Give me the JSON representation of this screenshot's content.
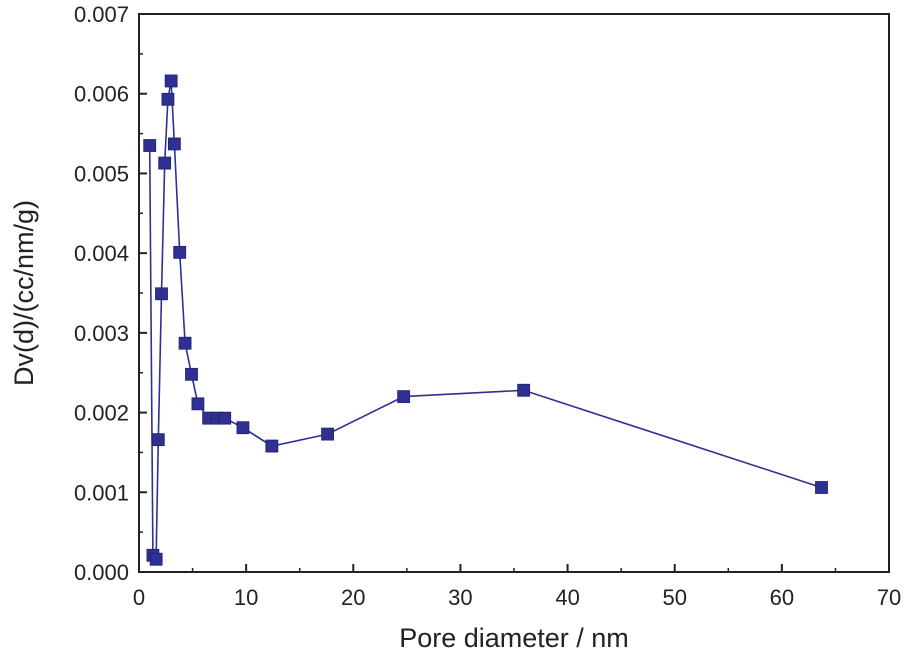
{
  "chart_data": {
    "type": "line",
    "xlabel": "Pore diameter / nm",
    "ylabel": "Dv(d)/(cc/nm/g)",
    "xlim": [
      0,
      70
    ],
    "ylim": [
      0,
      0.007
    ],
    "x_ticks": [
      0,
      10,
      20,
      30,
      40,
      50,
      60,
      70
    ],
    "x_tick_labels": [
      "0",
      "10",
      "20",
      "30",
      "40",
      "50",
      "60",
      "70"
    ],
    "y_ticks": [
      0,
      0.001,
      0.002,
      0.003,
      0.004,
      0.005,
      0.006,
      0.007
    ],
    "y_tick_labels": [
      "0.000",
      "0.001",
      "0.002",
      "0.003",
      "0.004",
      "0.005",
      "0.006",
      "0.007"
    ],
    "grid": false,
    "legend": "none",
    "marker": "square",
    "color": "#2e3192",
    "series": [
      {
        "x": [
          1.0,
          1.3,
          1.6,
          1.8,
          2.1,
          2.4,
          2.7,
          3.0,
          3.3,
          3.8,
          4.3,
          4.9,
          5.5,
          6.5,
          7.3,
          8.0,
          9.7,
          12.4,
          17.6,
          24.7,
          35.9,
          63.7
        ],
        "y": [
          0.00535,
          0.00021,
          0.00016,
          0.00166,
          0.00349,
          0.00513,
          0.00593,
          0.00616,
          0.00537,
          0.00401,
          0.00287,
          0.00248,
          0.00211,
          0.00193,
          0.00193,
          0.00193,
          0.00181,
          0.00158,
          0.00173,
          0.0022,
          0.00228,
          0.00106
        ]
      }
    ]
  }
}
